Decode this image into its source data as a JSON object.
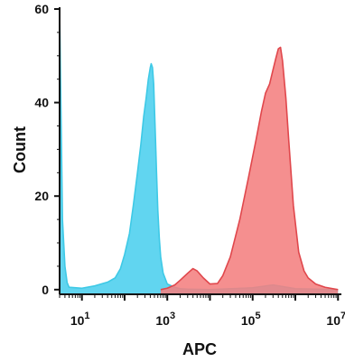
{
  "chart_data": {
    "type": "area",
    "xlabel": "APC",
    "ylabel": "Count",
    "x_scale": "log10",
    "xlim": [
      3,
      12000000
    ],
    "ylim": [
      -1,
      60
    ],
    "y_ticks": [
      0,
      20,
      40,
      60
    ],
    "y_tick_labels": [
      "0",
      "20",
      "40",
      "60"
    ],
    "x_ticks": [
      10,
      1000,
      100000,
      10000000
    ],
    "x_tick_labels": [
      {
        "base": "10",
        "exp": "1"
      },
      {
        "base": "10",
        "exp": "3"
      },
      {
        "base": "10",
        "exp": "5"
      },
      {
        "base": "10",
        "exp": "7"
      }
    ],
    "grid": false,
    "legend": "none",
    "series": [
      {
        "color": "#3ec9e6",
        "fill": "#59d3ef",
        "x": [
          3.0,
          3.5,
          4.0,
          4.5,
          5.0,
          10,
          20,
          40,
          60,
          80,
          100,
          130,
          160,
          200,
          240,
          280,
          320,
          360,
          400,
          420,
          450,
          480,
          500,
          530,
          560,
          600,
          650,
          700,
          800,
          1000,
          1500,
          2000,
          3000,
          10000,
          100000,
          300000,
          1000000,
          10000000
        ],
        "y": [
          60,
          15,
          5,
          1.5,
          0.5,
          0.3,
          0.8,
          1.6,
          2.5,
          4.5,
          7.5,
          12,
          18,
          25,
          31,
          37,
          41,
          45,
          47.5,
          48.3,
          47.5,
          44,
          39,
          32,
          25,
          17,
          11,
          7,
          3.5,
          1.2,
          0.5,
          0.2,
          0.1,
          0.0,
          0.4,
          1.0,
          0.2,
          0.0
        ]
      },
      {
        "color": "#e0474c",
        "fill": "#f47f7f",
        "x": [
          700,
          1000,
          1500,
          2000,
          3000,
          4000,
          5000,
          7000,
          10000,
          15000,
          20000,
          30000,
          50000,
          80000,
          120000,
          160000,
          200000,
          250000,
          300000,
          350000,
          400000,
          450000,
          500000,
          600000,
          700000,
          900000,
          1200000,
          1600000,
          2000000,
          3000000,
          5000000,
          10000000
        ],
        "y": [
          0.0,
          0.3,
          1.0,
          2.0,
          3.5,
          4.5,
          4.0,
          2.5,
          1.2,
          1.3,
          3.0,
          7.0,
          15,
          24,
          32,
          38,
          42,
          44,
          47,
          49.5,
          51.5,
          51.8,
          49,
          41,
          32,
          18,
          8,
          4,
          2.5,
          1.2,
          0.5,
          0.0
        ]
      }
    ]
  }
}
